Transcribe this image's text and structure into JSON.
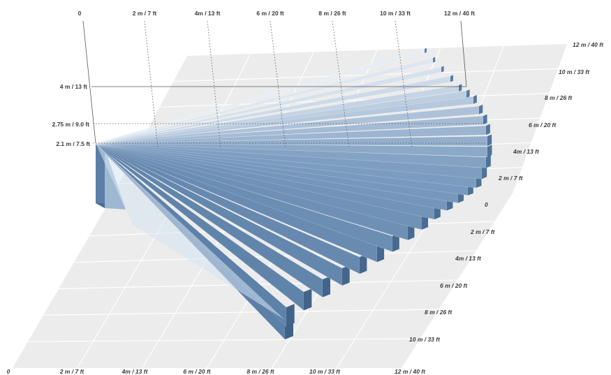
{
  "top_axis": {
    "ticks": [
      "0",
      "2 m / 7 ft",
      "4m / 13 ft",
      "6 m / 20 ft",
      "8 m / 26 ft",
      "10 m / 33 ft",
      "12 m / 40 ft"
    ]
  },
  "height_axis": {
    "ticks": [
      "4 m / 13 ft",
      "2.75 m / 9.0 ft",
      "2.1 m / 7.5 ft"
    ]
  },
  "right_axis": {
    "ticks": [
      "12 m / 40 ft",
      "10 m / 33 ft",
      "8 m / 26 ft",
      "6 m / 20 ft",
      "4m / 13 ft",
      "2 m / 7 ft",
      "0",
      "2 m / 7 ft",
      "4m / 13 ft",
      "6 m / 20 ft",
      "8 m / 26 ft",
      "10 m / 33 ft"
    ]
  },
  "bottom_axis": {
    "ticks": [
      "0",
      "2 m / 7 ft",
      "4m / 13 ft",
      "6 m / 20 ft",
      "8 m / 26 ft",
      "10 m / 33 ft",
      "12 m / 40 ft"
    ]
  },
  "colors": {
    "floor": "#ececec",
    "grid": "#ffffff",
    "beam_dark": "#5b7fa6",
    "beam_mid": "#7f9fc2",
    "beam_light": "#e6edf5",
    "guide": "#555555"
  }
}
